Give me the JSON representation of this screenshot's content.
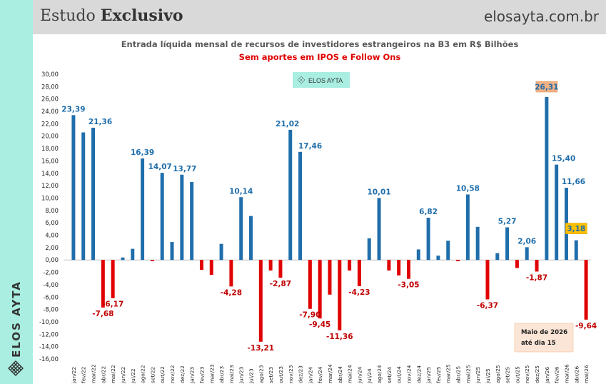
{
  "header": {
    "title_regular": "Estudo ",
    "title_bold": "Exclusivo",
    "site": "elosayta.com.br"
  },
  "brand": {
    "vertical_text": "ELOS AYTA",
    "badge_text": "ELOS AYTA",
    "logo_icon": "lattice-knot-icon"
  },
  "colors": {
    "positive": "#1f6eab",
    "negative": "#e00000",
    "positive_label": "#1f6eab",
    "negative_label": "#c00000",
    "accent_bg": "#a9eee1",
    "highlight_orange": "#f4b183",
    "highlight_yellow": "#ffc000",
    "note_bg": "#fbe5d6"
  },
  "note": {
    "line1": "Maio de 2026",
    "line2": "até dia 15"
  },
  "chart_data": {
    "type": "bar",
    "title": "Entrada líquida mensal de recursos de investidores estrangeiros na B3 em R$ Bilhões",
    "subtitle": "Sem aportes em IPOS e Follow Ons",
    "ylim": [
      -16,
      30
    ],
    "yticks": [
      "30,00",
      "28,00",
      "26,00",
      "24,00",
      "22,00",
      "20,00",
      "18,00",
      "16,00",
      "14,00",
      "12,00",
      "10,00",
      "8,00",
      "6,00",
      "4,00",
      "2,00",
      "0,00",
      "-2,00",
      "-4,00",
      "-6,00",
      "-8,00",
      "-10,00",
      "-12,00",
      "-14,00",
      "-16,00"
    ],
    "grid": false,
    "categories": [
      "jan/22",
      "fev/22",
      "mar/22",
      "abr/22",
      "mai/22",
      "jun/22",
      "jul/22",
      "ago/22",
      "set/22",
      "out/22",
      "nov/22",
      "dez/22",
      "jan/23",
      "fev/23",
      "mar/23",
      "abr/23",
      "mai/23",
      "jun/23",
      "jul/23",
      "ago/23",
      "set/23",
      "out/23",
      "nov/23",
      "dez/23",
      "jan/24",
      "fev/24",
      "mar/24",
      "abr/24",
      "mai/24",
      "jun/24",
      "jul/24",
      "ago/24",
      "set/24",
      "out/24",
      "nov/24",
      "dez/24",
      "jan/25",
      "fev/25",
      "mar/25",
      "abr/25",
      "mai/25",
      "jun/25",
      "jul/25",
      "ago/25",
      "set/25",
      "out/25",
      "nov/25",
      "dez/25",
      "jan/26",
      "fev/26",
      "mar/26",
      "abr/26",
      "mai/26"
    ],
    "values": [
      23.39,
      20.6,
      21.36,
      -7.68,
      -6.17,
      0.4,
      1.8,
      16.39,
      -0.2,
      14.07,
      2.9,
      13.77,
      12.6,
      -1.6,
      -2.4,
      2.6,
      -4.28,
      10.14,
      7.1,
      -13.21,
      -1.7,
      -2.87,
      21.02,
      17.46,
      -7.9,
      -9.45,
      -5.6,
      -11.36,
      -1.7,
      -4.23,
      3.5,
      10.01,
      -1.7,
      -2.5,
      -3.05,
      1.7,
      6.82,
      0.7,
      3.1,
      -0.2,
      10.58,
      5.35,
      -6.37,
      1.1,
      5.27,
      -1.3,
      2.06,
      -1.87,
      26.31,
      15.4,
      11.66,
      3.18,
      -9.64
    ],
    "data_labels": [
      {
        "index": 0,
        "text": "23,39"
      },
      {
        "index": 2,
        "text": "21,36"
      },
      {
        "index": 3,
        "text": "-7,68"
      },
      {
        "index": 4,
        "text": "-6,17"
      },
      {
        "index": 7,
        "text": "16,39"
      },
      {
        "index": 9,
        "text": "14,07"
      },
      {
        "index": 11,
        "text": "13,77"
      },
      {
        "index": 16,
        "text": "-4,28"
      },
      {
        "index": 17,
        "text": "10,14"
      },
      {
        "index": 19,
        "text": "-13,21"
      },
      {
        "index": 21,
        "text": "-2,87"
      },
      {
        "index": 22,
        "text": "21,02"
      },
      {
        "index": 23,
        "text": "17,46"
      },
      {
        "index": 24,
        "text": "-7,90"
      },
      {
        "index": 25,
        "text": "-9,45"
      },
      {
        "index": 27,
        "text": "-11,36"
      },
      {
        "index": 29,
        "text": "-4,23"
      },
      {
        "index": 31,
        "text": "10,01"
      },
      {
        "index": 34,
        "text": "-3,05"
      },
      {
        "index": 36,
        "text": "6,82"
      },
      {
        "index": 40,
        "text": "10,58"
      },
      {
        "index": 42,
        "text": "-6,37"
      },
      {
        "index": 44,
        "text": "5,27"
      },
      {
        "index": 46,
        "text": "2,06"
      },
      {
        "index": 47,
        "text": "-1,87"
      },
      {
        "index": 48,
        "text": "26,31"
      },
      {
        "index": 49,
        "text": "15,40"
      },
      {
        "index": 50,
        "text": "11,66"
      },
      {
        "index": 51,
        "text": "3,18"
      },
      {
        "index": 52,
        "text": "-9,64"
      }
    ]
  }
}
